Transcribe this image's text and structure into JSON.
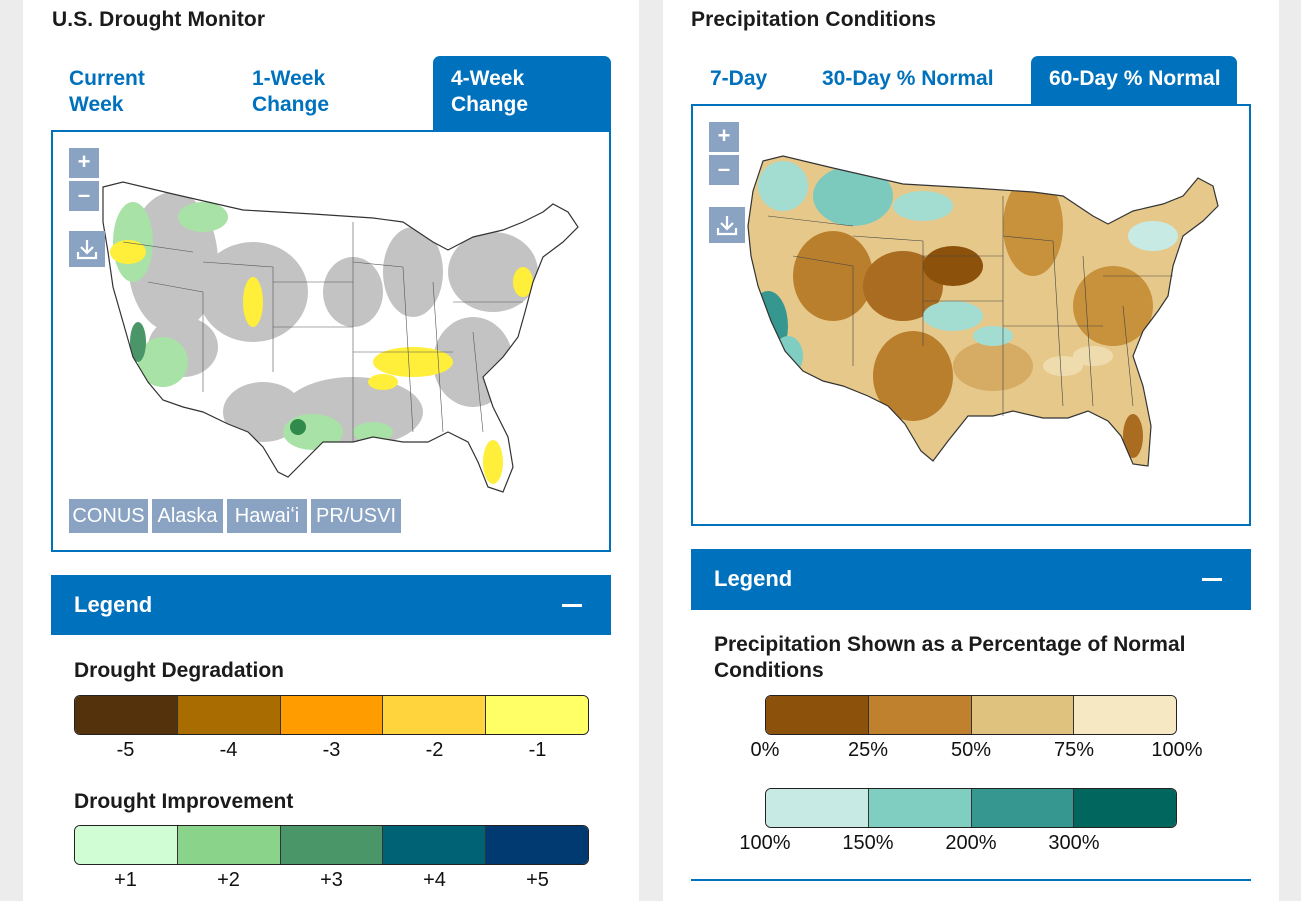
{
  "drought": {
    "title": "U.S. Drought Monitor",
    "tabs": [
      {
        "line1": "Current",
        "line2": "Week"
      },
      {
        "line1": "1-Week",
        "line2": "Change"
      },
      {
        "line1": "4-Week",
        "line2": "Change"
      }
    ],
    "active_tab": "4-Week Change",
    "zoom_in": "+",
    "zoom_out": "–",
    "regions": [
      "CONUS",
      "Alaska",
      "Hawaiʻi",
      "PR/USVI"
    ],
    "legend": {
      "label": "Legend",
      "degradation_title": "Drought Degradation",
      "degradation_colors": [
        "#54320b",
        "#a86c00",
        "#ff9d00",
        "#ffd43d",
        "#ffff66"
      ],
      "degradation_ticks": [
        "-5",
        "-4",
        "-3",
        "-2",
        "-1"
      ],
      "improvement_title": "Drought Improvement",
      "improvement_colors": [
        "#d1fdd4",
        "#89d38b",
        "#4a9668",
        "#006375",
        "#003a70"
      ],
      "improvement_ticks": [
        "+1",
        "+2",
        "+3",
        "+4",
        "+5"
      ]
    }
  },
  "precip": {
    "title": "Precipitation Conditions",
    "tabs": [
      "7-Day",
      "30-Day % Normal",
      "60-Day % Normal"
    ],
    "active_tab": "60-Day % Normal",
    "zoom_in": "+",
    "zoom_out": "–",
    "legend": {
      "label": "Legend",
      "heading": "Precipitation Shown as a Percentage of Normal Conditions",
      "dry_colors": [
        "#8c510a",
        "#bf812d",
        "#dfc27d",
        "#f6e8c3"
      ],
      "dry_ticks": [
        "0%",
        "25%",
        "50%",
        "75%",
        "100%"
      ],
      "wet_colors": [
        "#c7eae5",
        "#80cdc1",
        "#35978f",
        "#01665e"
      ],
      "wet_ticks": [
        "100%",
        "150%",
        "200%",
        "300%"
      ]
    }
  }
}
